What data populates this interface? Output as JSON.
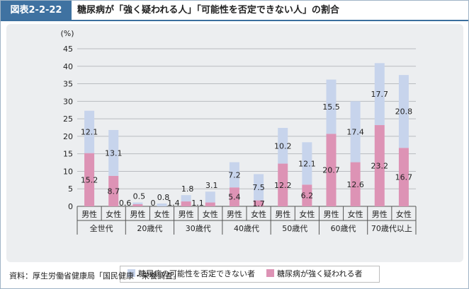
{
  "header": {
    "figure_id": "図表2-2-22",
    "title": "糖尿病が「強く疑われる人」「可能性を否定できない人」の割合"
  },
  "colors": {
    "strong": "#dd93b5",
    "possible": "#c7d4ec",
    "figure_id_bg": "#3f72a1"
  },
  "chart_data": {
    "type": "bar",
    "stacked": true,
    "ylabel": "(%)",
    "ylim": [
      0,
      45
    ],
    "yticks": [
      "0",
      "5",
      "10",
      "15",
      "20",
      "25",
      "30",
      "35",
      "40",
      "45"
    ],
    "groups": [
      {
        "label": "全世代",
        "bars": [
          {
            "sex": "男性",
            "strong": 15.2,
            "possible": 12.1,
            "strong_label": "15.2",
            "possible_label": "12.1"
          },
          {
            "sex": "女性",
            "strong": 8.7,
            "possible": 13.1,
            "strong_label": "8.7",
            "possible_label": "13.1"
          }
        ]
      },
      {
        "label": "20歳代",
        "bars": [
          {
            "sex": "男性",
            "strong": 0.6,
            "possible": 0.5,
            "strong_label": "0.6",
            "possible_label": "0.5"
          },
          {
            "sex": "女性",
            "strong": 0,
            "possible": 0.8,
            "strong_label": "0",
            "possible_label": "0.8"
          }
        ]
      },
      {
        "label": "30歳代",
        "bars": [
          {
            "sex": "男性",
            "strong": 1.4,
            "possible": 1.8,
            "strong_label": "1.4",
            "possible_label": "1.8"
          },
          {
            "sex": "女性",
            "strong": 1.1,
            "possible": 3.1,
            "strong_label": "1.1",
            "possible_label": "3.1"
          }
        ]
      },
      {
        "label": "40歳代",
        "bars": [
          {
            "sex": "男性",
            "strong": 5.4,
            "possible": 7.2,
            "strong_label": "5.4",
            "possible_label": "7.2"
          },
          {
            "sex": "女性",
            "strong": 1.7,
            "possible": 7.5,
            "strong_label": "1.7",
            "possible_label": "7.5"
          }
        ]
      },
      {
        "label": "50歳代",
        "bars": [
          {
            "sex": "男性",
            "strong": 12.2,
            "possible": 10.2,
            "strong_label": "12.2",
            "possible_label": "10.2"
          },
          {
            "sex": "女性",
            "strong": 6.2,
            "possible": 12.1,
            "strong_label": "6.2",
            "possible_label": "12.1"
          }
        ]
      },
      {
        "label": "60歳代",
        "bars": [
          {
            "sex": "男性",
            "strong": 20.7,
            "possible": 15.5,
            "strong_label": "20.7",
            "possible_label": "15.5"
          },
          {
            "sex": "女性",
            "strong": 12.6,
            "possible": 17.4,
            "strong_label": "12.6",
            "possible_label": "17.4"
          }
        ]
      },
      {
        "label": "70歳代以上",
        "bars": [
          {
            "sex": "男性",
            "strong": 23.2,
            "possible": 17.7,
            "strong_label": "23.2",
            "possible_label": "17.7"
          },
          {
            "sex": "女性",
            "strong": 16.7,
            "possible": 20.8,
            "strong_label": "16.7",
            "possible_label": "20.8"
          }
        ]
      }
    ],
    "legend": {
      "possible": "糖尿病の可能性を否定できない者",
      "strong": "糖尿病が強く疑われる者"
    }
  },
  "source": "資料：厚生労働省健康局「国民健康・栄養調査」"
}
